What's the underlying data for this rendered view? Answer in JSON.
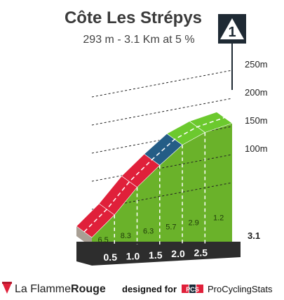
{
  "header": {
    "title": "Côte Les Strépys",
    "subtitle": "293 m - 3.1 Km at 5 %"
  },
  "category": {
    "label": "1"
  },
  "chart_data": {
    "type": "area",
    "xlabel": "",
    "ylabel": "",
    "x_ticks": [
      "0.5",
      "1.0",
      "1.5",
      "2.0",
      "2.5"
    ],
    "x_end_label": "3.1",
    "y_ticks": [
      {
        "value": 100,
        "label": "100m"
      },
      {
        "value": 150,
        "label": "150m"
      },
      {
        "value": 200,
        "label": "200m"
      },
      {
        "value": 250,
        "label": "250m"
      }
    ],
    "segments": [
      {
        "x0": 0.0,
        "x1": 0.5,
        "gradient": 6.5,
        "gradient_label": "6.5",
        "color": "#e0203a"
      },
      {
        "x0": 0.5,
        "x1": 1.0,
        "gradient": 8.3,
        "gradient_label": "8.3",
        "color": "#e0203a"
      },
      {
        "x0": 1.0,
        "x1": 1.5,
        "gradient": 6.3,
        "gradient_label": "6.3",
        "color": "#e0203a"
      },
      {
        "x0": 1.5,
        "x1": 2.0,
        "gradient": 5.7,
        "gradient_label": "5.7",
        "color": "#245d86"
      },
      {
        "x0": 2.0,
        "x1": 2.5,
        "gradient": 2.9,
        "gradient_label": "2.9",
        "color": "#6cc92e"
      },
      {
        "x0": 2.5,
        "x1": 3.1,
        "gradient": 1.2,
        "gradient_label": "1.2",
        "color": "#6cc92e"
      }
    ],
    "x_range": [
      0,
      3.1
    ],
    "colors": {
      "side_fill": "#6ab22a",
      "left_face": "#a89f94",
      "base_bar": "#2d2d2d",
      "grid_dash": "#222222",
      "km_dash": "#ffffff"
    }
  },
  "footer": {
    "brand_prefix": "La Flamme",
    "brand_suffix": "Rouge",
    "designed_for": "designed for",
    "pcs_badge": "PCS",
    "pcs_name": "ProCyclingStats"
  }
}
